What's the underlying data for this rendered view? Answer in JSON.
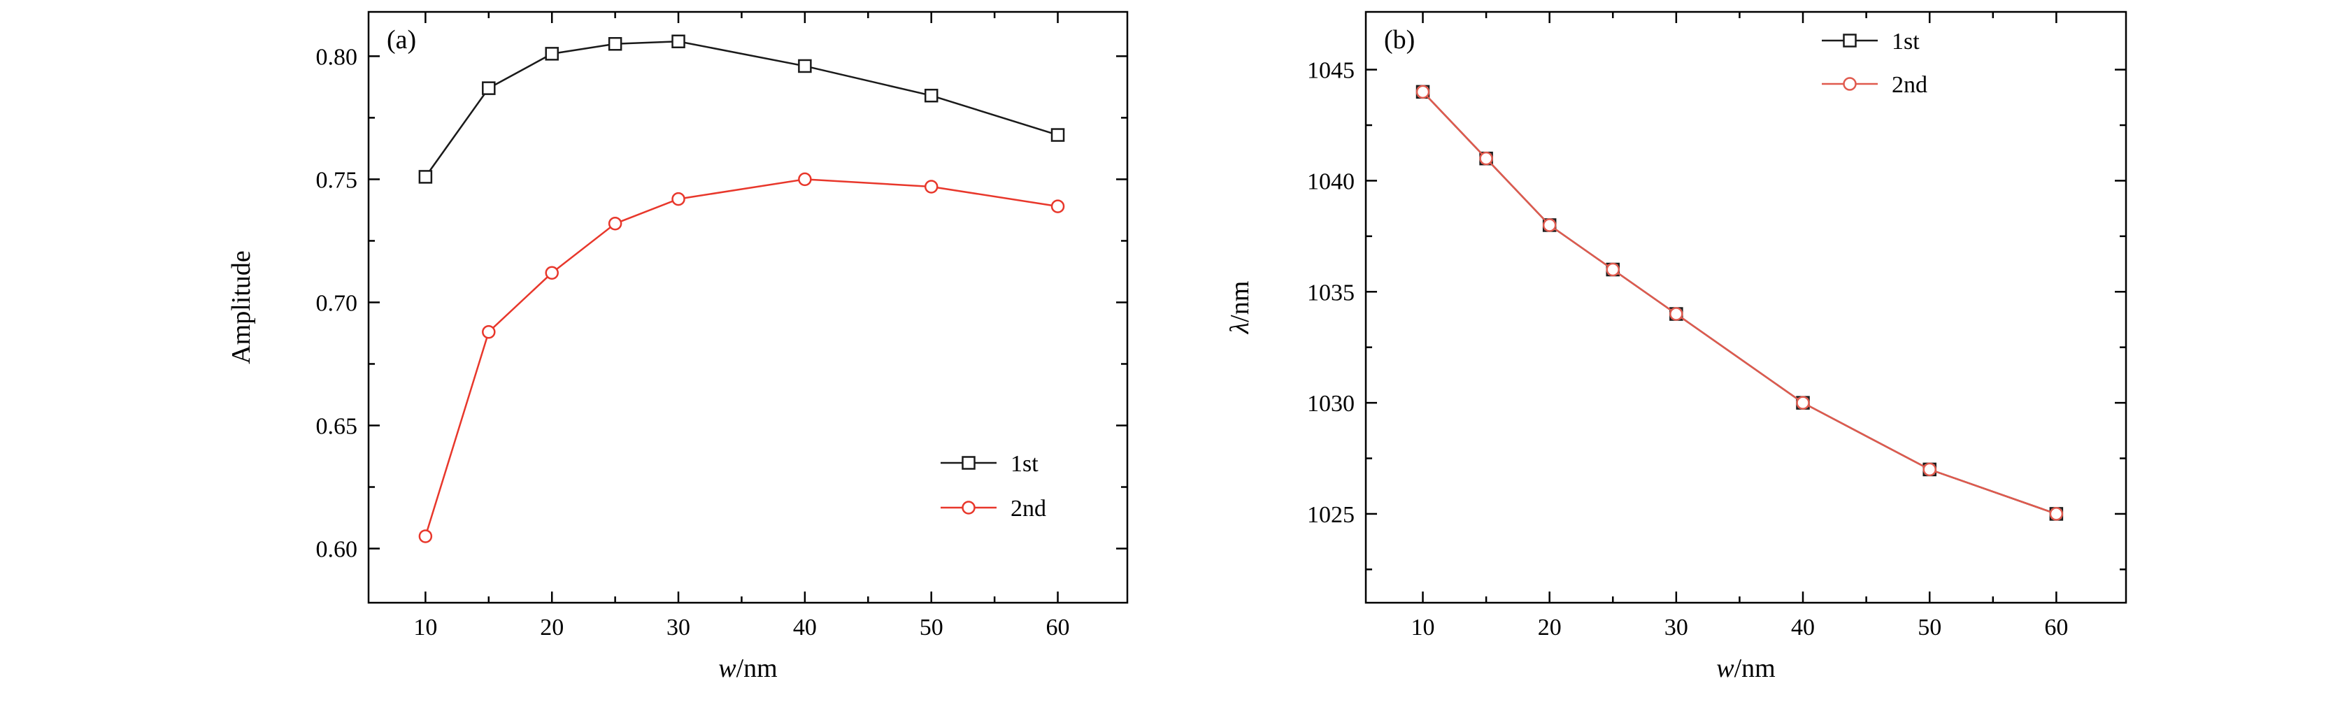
{
  "figure": {
    "background": "#ffffff",
    "axis_color": "#000000"
  },
  "chart_data": [
    {
      "id": "a",
      "type": "line",
      "panel_label": "(a)",
      "xlabel_parts": [
        {
          "text": "w",
          "italic": true
        },
        {
          "text": "/nm",
          "italic": false
        }
      ],
      "ylabel_parts": [
        {
          "text": "Amplitude",
          "italic": false
        }
      ],
      "xlim": [
        5.5,
        65.5
      ],
      "ylim": [
        0.578,
        0.818
      ],
      "xticks": [
        10,
        20,
        30,
        40,
        50,
        60
      ],
      "xtick_labels": [
        "10",
        "20",
        "30",
        "40",
        "50",
        "60"
      ],
      "xminor": [
        15,
        25,
        35,
        45,
        55
      ],
      "yticks": [
        0.6,
        0.65,
        0.7,
        0.75,
        0.8
      ],
      "ytick_labels": [
        "0.60",
        "0.65",
        "0.70",
        "0.75",
        "0.80"
      ],
      "yminor": [
        0.625,
        0.675,
        0.725,
        0.775
      ],
      "x": [
        10,
        15,
        20,
        25,
        30,
        40,
        50,
        60
      ],
      "series": [
        {
          "name": "1st",
          "color": "#1a1a1a",
          "marker": "square-open",
          "values": [
            0.751,
            0.787,
            0.801,
            0.805,
            0.806,
            0.796,
            0.784,
            0.768
          ]
        },
        {
          "name": "2nd",
          "color": "#e8372b",
          "marker": "circle-open",
          "values": [
            0.605,
            0.688,
            0.712,
            0.732,
            0.742,
            0.75,
            0.747,
            0.739
          ]
        }
      ],
      "legend_entries": [
        "1st",
        "2nd"
      ]
    },
    {
      "id": "b",
      "type": "line",
      "panel_label": "(b)",
      "xlabel_parts": [
        {
          "text": "w",
          "italic": true
        },
        {
          "text": "/nm",
          "italic": false
        }
      ],
      "ylabel_parts": [
        {
          "text": "λ",
          "italic": true
        },
        {
          "text": "/nm",
          "italic": false
        }
      ],
      "xlim": [
        5.5,
        65.5
      ],
      "ylim": [
        1021,
        1047.6
      ],
      "xticks": [
        10,
        20,
        30,
        40,
        50,
        60
      ],
      "xtick_labels": [
        "10",
        "20",
        "30",
        "40",
        "50",
        "60"
      ],
      "xminor": [
        15,
        25,
        35,
        45,
        55
      ],
      "yticks": [
        1025,
        1030,
        1035,
        1040,
        1045
      ],
      "ytick_labels": [
        "1025",
        "1030",
        "1035",
        "1040",
        "1045"
      ],
      "yminor": [
        1022.5,
        1027.5,
        1032.5,
        1037.5,
        1042.5
      ],
      "x": [
        10,
        15,
        20,
        25,
        30,
        40,
        50,
        60
      ],
      "series": [
        {
          "name": "1st",
          "color": "#1a1a1a",
          "marker": "square-open",
          "values": [
            1044,
            1041,
            1038,
            1036,
            1034,
            1030,
            1027,
            1025
          ]
        },
        {
          "name": "2nd",
          "color": "#e05a4e",
          "marker": "circle-open",
          "values": [
            1044,
            1041,
            1038,
            1036,
            1034,
            1030,
            1027,
            1025
          ]
        }
      ],
      "legend_entries": [
        "1st",
        "2nd"
      ]
    }
  ]
}
